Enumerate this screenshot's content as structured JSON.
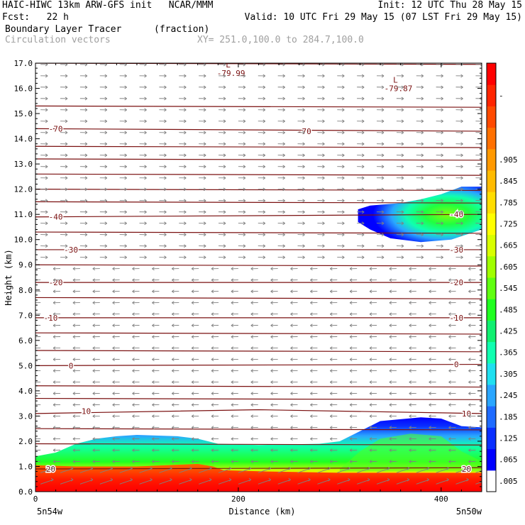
{
  "header": {
    "line1_left": "HAIC-HIWC 13km ARW-GFS init   NCAR/MMM",
    "line1_right": "Init: 12 UTC Thu 28 May 15",
    "line2_left": "Fcst:   22 h",
    "line2_right": "Valid: 10 UTC Fri 29 May 15 (07 LST Fri 29 May 15)",
    "field_name": "Boundary Layer Tracer",
    "field_units": "(fraction)",
    "vector_name": "Circulation vectors",
    "cross_section": "XY= 251.0,100.0 to 284.7,100.0"
  },
  "colors": {
    "contour": "#7a1010",
    "vectors": "#808080",
    "grey_text": "#a0a0a0",
    "colorbar": [
      "#ffffff",
      "#0000ff",
      "#0a2fff",
      "#1f6bff",
      "#2aa6ff",
      "#1fe0f0",
      "#10ffb0",
      "#10f070",
      "#20ff20",
      "#60ff10",
      "#a0ff00",
      "#d8ff00",
      "#ffff00",
      "#ffdd00",
      "#ffbb00",
      "#ff9900",
      "#ff7000",
      "#ff4a00",
      "#ff2500",
      "#ff0000"
    ]
  },
  "chart_data": {
    "type": "heatmap",
    "xlabel": "Distance (km)",
    "ylabel": "Height (km)",
    "xlim": [
      0,
      440
    ],
    "ylim": [
      0,
      17
    ],
    "x_ticks": [
      0,
      200,
      400
    ],
    "x_tick_labels": [
      "0",
      "200",
      "400"
    ],
    "y_ticks": [
      0,
      1,
      2,
      3,
      4,
      5,
      6,
      7,
      8,
      9,
      10,
      11,
      12,
      13,
      14,
      15,
      16,
      17
    ],
    "y_tick_labels": [
      "0.0",
      "1.0",
      "2.0",
      "3.0",
      "4.0",
      "5.0",
      "6.0",
      "7.0",
      "8.0",
      "9.0",
      "10.0",
      "11.0",
      "12.0",
      "13.0",
      "14.0",
      "15.0",
      "16.0",
      "17.0"
    ],
    "x_endpoint_labels": {
      "left": "5n54w",
      "right": "5n50w"
    },
    "colorbar_labels": [
      ".005",
      ".065",
      ".125",
      ".185",
      ".245",
      ".305",
      ".365",
      ".425",
      ".485",
      ".545",
      ".605",
      ".665",
      ".725",
      ".785",
      ".845",
      ".905",
      "-"
    ],
    "colorbar_label_indices": [
      0,
      1,
      2,
      3,
      4,
      5,
      6,
      7,
      8,
      9,
      10,
      11,
      12,
      13,
      14,
      15,
      18
    ],
    "low_tracer_region": {
      "description_free": true,
      "top_profile": [
        [
          0,
          1.4
        ],
        [
          20,
          1.55
        ],
        [
          40,
          1.9
        ],
        [
          60,
          2.1
        ],
        [
          80,
          2.2
        ],
        [
          100,
          2.25
        ],
        [
          140,
          2.2
        ],
        [
          160,
          2.1
        ],
        [
          180,
          1.9
        ],
        [
          220,
          1.85
        ],
        [
          280,
          1.9
        ],
        [
          300,
          2.0
        ],
        [
          320,
          2.4
        ],
        [
          340,
          2.8
        ],
        [
          380,
          2.95
        ],
        [
          400,
          2.9
        ],
        [
          420,
          2.6
        ],
        [
          440,
          2.55
        ]
      ]
    },
    "upper_tracer_region": {
      "x_range": [
        318,
        440
      ],
      "top_profile": [
        [
          318,
          11.2
        ],
        [
          330,
          11.35
        ],
        [
          360,
          11.45
        ],
        [
          380,
          11.6
        ],
        [
          400,
          11.8
        ],
        [
          420,
          12.1
        ],
        [
          440,
          12.1
        ]
      ],
      "bottom_profile": [
        [
          318,
          10.7
        ],
        [
          330,
          10.4
        ],
        [
          350,
          10.05
        ],
        [
          380,
          9.9
        ],
        [
          410,
          10.0
        ],
        [
          440,
          10.4
        ]
      ]
    },
    "temperature_contours": [
      {
        "label": "-70",
        "levels": [
          [
            0,
            14.4
          ],
          [
            440,
            14.3
          ]
        ],
        "label_positions": [
          [
            20,
            14.4
          ],
          [
            265,
            14.3
          ]
        ]
      },
      {
        "label": "-40",
        "levels": [
          [
            0,
            10.9
          ],
          [
            440,
            11.0
          ]
        ],
        "label_positions": [
          [
            20,
            10.9
          ],
          [
            415,
            11.0
          ]
        ]
      },
      {
        "label": "-30",
        "levels": [
          [
            0,
            9.6
          ],
          [
            440,
            9.6
          ]
        ],
        "label_positions": [
          [
            35,
            9.6
          ],
          [
            415,
            9.6
          ]
        ]
      },
      {
        "label": "-20",
        "levels": [
          [
            0,
            8.3
          ],
          [
            440,
            8.3
          ]
        ],
        "label_positions": [
          [
            20,
            8.3
          ],
          [
            415,
            8.3
          ]
        ]
      },
      {
        "label": "-10",
        "levels": [
          [
            0,
            6.9
          ],
          [
            440,
            6.9
          ]
        ],
        "label_positions": [
          [
            15,
            6.9
          ],
          [
            415,
            6.9
          ]
        ]
      },
      {
        "label": "0",
        "levels": [
          [
            0,
            5.0
          ],
          [
            440,
            5.05
          ]
        ],
        "label_positions": [
          [
            35,
            5.0
          ],
          [
            415,
            5.05
          ]
        ]
      },
      {
        "label": "10",
        "levels": [
          [
            0,
            3.1
          ],
          [
            220,
            3.25
          ],
          [
            440,
            3.1
          ]
        ],
        "label_positions": [
          [
            50,
            3.2
          ],
          [
            425,
            3.1
          ]
        ]
      },
      {
        "label": "20",
        "levels": [
          [
            0,
            0.9
          ],
          [
            440,
            0.95
          ]
        ],
        "label_positions": [
          [
            15,
            0.9
          ],
          [
            425,
            0.9
          ]
        ]
      }
    ],
    "unlabeled_contour_heights": [
      17.0,
      15.3,
      13.7,
      13.2,
      12.6,
      12.0,
      11.5,
      10.3,
      9.0,
      7.7,
      6.3,
      5.6,
      4.2,
      3.7,
      2.5,
      1.9
    ],
    "lows": [
      {
        "symbol": "L",
        "value": "-79.99",
        "x": 190,
        "y": 16.6
      },
      {
        "symbol": "L",
        "value": "-79.87",
        "x": 355,
        "y": 16.0
      }
    ]
  }
}
